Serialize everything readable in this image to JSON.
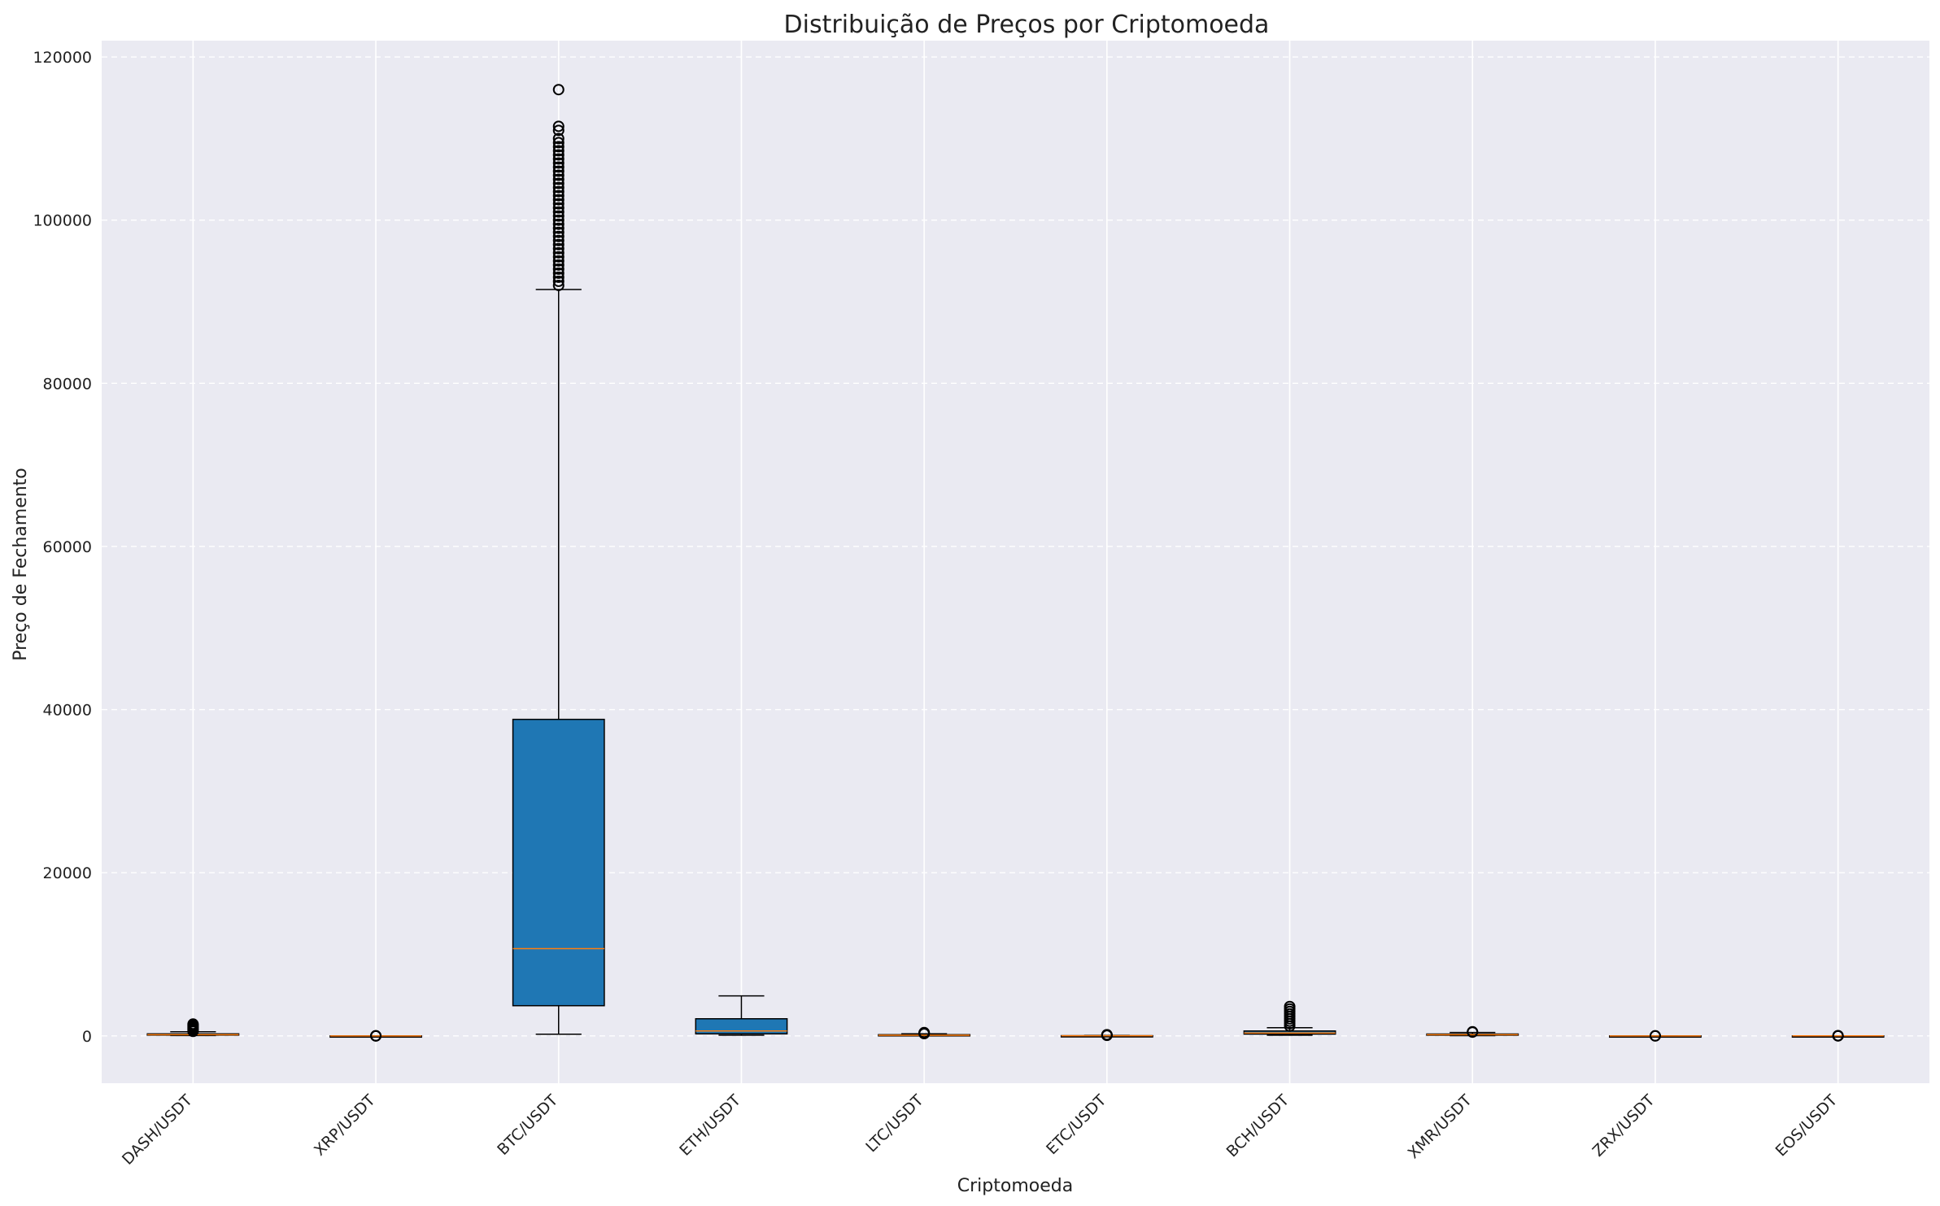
{
  "chart_data": {
    "type": "box",
    "title": "Distribuição de Preços por Criptomoeda",
    "xlabel": "Criptomoeda",
    "ylabel": "Preço de Fechamento",
    "ylim": [
      -5800,
      122000
    ],
    "yticks": [
      0,
      20000,
      40000,
      60000,
      80000,
      100000,
      120000
    ],
    "grid": true,
    "colors": {
      "background": "#eaeaf2",
      "box_fill": "#1f77b4",
      "median": "#ff7f0e",
      "outline": "#000000",
      "grid": "#ffffff"
    },
    "categories": [
      "DASH/USDT",
      "XRP/USDT",
      "BTC/USDT",
      "ETH/USDT",
      "LTC/USDT",
      "ETC/USDT",
      "BCH/USDT",
      "XMR/USDT",
      "ZRX/USDT",
      "EOS/USDT"
    ],
    "boxes": [
      {
        "name": "DASH/USDT",
        "whisker_low": 40,
        "q1": 90,
        "median": 150,
        "q3": 250,
        "whisker_high": 500,
        "outliers": [
          550,
          700,
          850,
          1000,
          1150,
          1300,
          1450
        ]
      },
      {
        "name": "XRP/USDT",
        "whisker_low": 0.2,
        "q1": 0.3,
        "median": 0.5,
        "q3": 0.7,
        "whisker_high": 1.5,
        "outliers": [
          1.8,
          2.5,
          3.3
        ]
      },
      {
        "name": "BTC/USDT",
        "whisker_low": 200,
        "q1": 3700,
        "median": 10700,
        "q3": 38800,
        "whisker_high": 91500,
        "outliers": [
          92000,
          92500,
          93000,
          93500,
          94000,
          94500,
          95000,
          95500,
          96000,
          96500,
          97000,
          97500,
          98000,
          98500,
          99000,
          99500,
          100000,
          100500,
          101000,
          101500,
          102000,
          102500,
          103000,
          103500,
          104000,
          104500,
          105000,
          105500,
          106000,
          106500,
          107000,
          107500,
          108000,
          108500,
          109000,
          109500,
          110000,
          111000,
          111500,
          116000
        ]
      },
      {
        "name": "ETH/USDT",
        "whisker_low": 80,
        "q1": 250,
        "median": 600,
        "q3": 2100,
        "whisker_high": 4900,
        "outliers": []
      },
      {
        "name": "LTC/USDT",
        "whisker_low": 20,
        "q1": 50,
        "median": 80,
        "q3": 150,
        "whisker_high": 250,
        "outliers": [
          280,
          320,
          360,
          400
        ]
      },
      {
        "name": "ETC/USDT",
        "whisker_low": 1,
        "q1": 6,
        "median": 15,
        "q3": 25,
        "whisker_high": 60,
        "outliers": [
          70,
          90,
          120,
          150
        ]
      },
      {
        "name": "BCH/USDT",
        "whisker_low": 80,
        "q1": 220,
        "median": 350,
        "q3": 600,
        "whisker_high": 1000,
        "outliers": [
          1200,
          1500,
          1800,
          2100,
          2400,
          2700,
          3000,
          3300,
          3600
        ]
      },
      {
        "name": "XMR/USDT",
        "whisker_low": 35,
        "q1": 90,
        "median": 150,
        "q3": 230,
        "whisker_high": 420,
        "outliers": [
          460,
          500
        ]
      },
      {
        "name": "ZRX/USDT",
        "whisker_low": 0.1,
        "q1": 0.3,
        "median": 0.5,
        "q3": 0.8,
        "whisker_high": 1.6,
        "outliers": [
          2,
          2.5
        ]
      },
      {
        "name": "EOS/USDT",
        "whisker_low": 0.5,
        "q1": 1,
        "median": 2.5,
        "q3": 4,
        "whisker_high": 8,
        "outliers": [
          10,
          13,
          16,
          20
        ]
      }
    ]
  }
}
